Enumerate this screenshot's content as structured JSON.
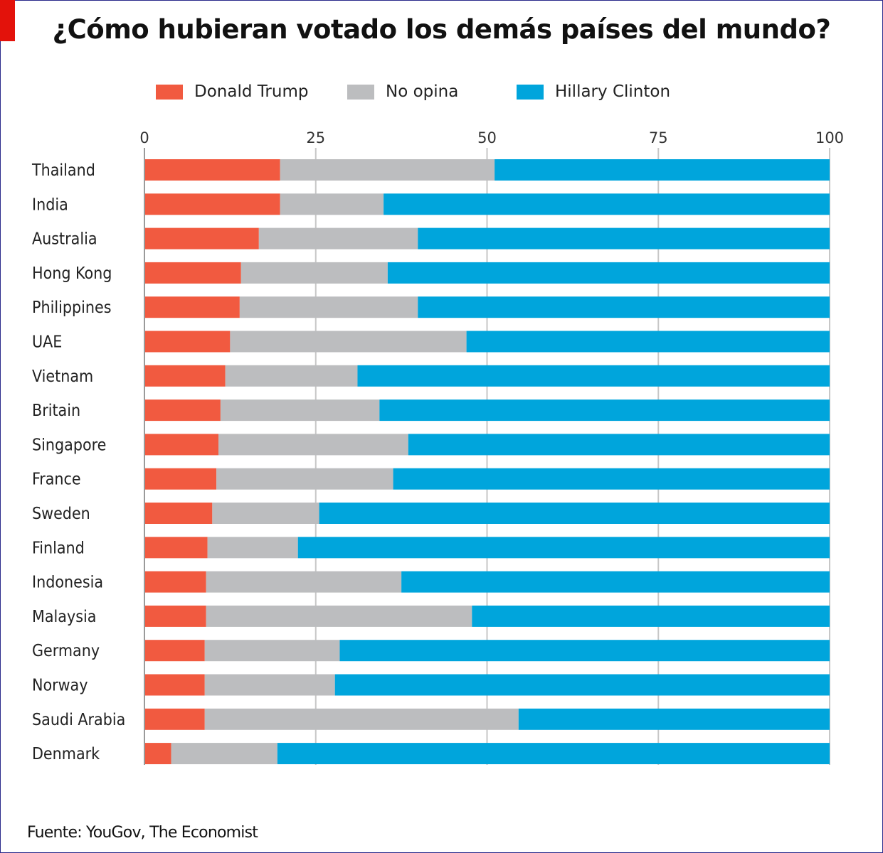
{
  "title": "¿Cómo hubieran votado los demás países del mundo?",
  "source": "Fuente: YouGov, The Economist",
  "colors": {
    "trump": "#f15a40",
    "no_opina": "#bcbdbf",
    "clinton": "#00a5dc",
    "grid": "#c7c7c7",
    "accent": "#e3120b"
  },
  "legend": [
    {
      "label": "Donald Trump",
      "color": "#f15a40"
    },
    {
      "label": "No opina",
      "color": "#bcbdbf"
    },
    {
      "label": "Hillary Clinton",
      "color": "#00a5dc"
    }
  ],
  "chart_data": {
    "type": "bar",
    "orientation": "horizontal",
    "stacked": true,
    "title": "¿Cómo hubieran votado los demás países del mundo?",
    "xlabel": "",
    "ylabel": "",
    "xlim": [
      0,
      100
    ],
    "xticks": [
      0,
      25,
      50,
      75,
      100
    ],
    "xtick_labels": [
      "0",
      "25",
      "50",
      "75",
      "100"
    ],
    "grid": true,
    "legend_position": "top",
    "categories": [
      "Thailand",
      "India",
      "Australia",
      "Hong Kong",
      "Philippines",
      "UAE",
      "Vietnam",
      "Britain",
      "Singapore",
      "France",
      "Sweden",
      "Finland",
      "Indonesia",
      "Malaysia",
      "Germany",
      "Norway",
      "Saudi Arabia",
      "Denmark"
    ],
    "series": [
      {
        "name": "Donald Trump",
        "values": [
          19.8,
          19.8,
          16.7,
          14.1,
          13.9,
          12.5,
          11.8,
          11.1,
          10.8,
          10.5,
          9.9,
          9.2,
          9.0,
          9.0,
          8.8,
          8.8,
          8.8,
          3.9
        ]
      },
      {
        "name": "No opina",
        "values": [
          31.3,
          15.1,
          23.2,
          21.4,
          26.0,
          34.5,
          19.3,
          23.2,
          27.7,
          25.8,
          15.6,
          13.2,
          28.5,
          38.8,
          19.7,
          19.0,
          45.8,
          15.5
        ]
      },
      {
        "name": "Hillary Clinton",
        "values": [
          48.9,
          65.1,
          60.1,
          64.5,
          60.1,
          53.0,
          68.9,
          65.7,
          61.5,
          63.7,
          74.5,
          77.6,
          62.5,
          52.2,
          71.5,
          72.2,
          45.4,
          80.6
        ]
      }
    ]
  }
}
